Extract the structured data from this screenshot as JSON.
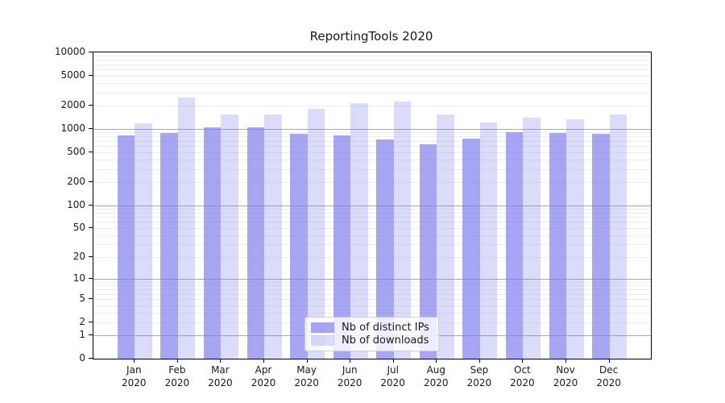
{
  "chart_data": {
    "type": "bar",
    "title": "ReportingTools 2020",
    "categories": [
      "Jan",
      "Feb",
      "Mar",
      "Apr",
      "May",
      "Jun",
      "Jul",
      "Aug",
      "Sep",
      "Oct",
      "Nov",
      "Dec"
    ],
    "x_year": "2020",
    "series": [
      {
        "name": "Nb of distinct IPs",
        "color": "rgba(124,124,238,0.68)",
        "values": [
          825,
          885,
          1050,
          1050,
          865,
          825,
          730,
          630,
          750,
          910,
          880,
          860
        ]
      },
      {
        "name": "Nb of downloads",
        "color": "rgba(124,124,238,0.28)",
        "values": [
          1185,
          2575,
          1545,
          1560,
          1830,
          2190,
          2280,
          1545,
          1215,
          1395,
          1345,
          1560
        ]
      }
    ],
    "yscale": "log1p",
    "ylim": [
      0,
      10000
    ],
    "yticks": [
      0,
      1,
      2,
      5,
      10,
      20,
      50,
      100,
      200,
      500,
      1000,
      2000,
      5000,
      10000
    ],
    "major_gridlines": [
      1,
      10,
      100,
      1000
    ],
    "grid": true,
    "legend_position": "lower center",
    "colors": {
      "major_grid": "#a9a9a9",
      "minor_grid": "#ededed",
      "axis": "#000000"
    }
  }
}
